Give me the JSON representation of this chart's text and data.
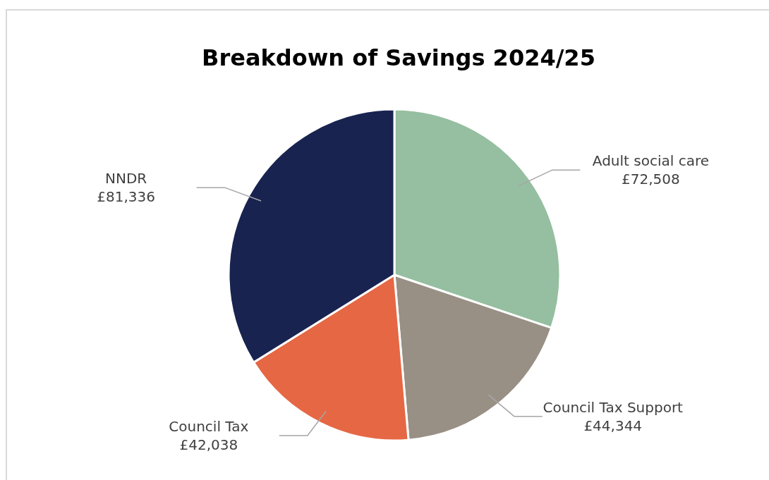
{
  "chart_data": {
    "type": "pie",
    "title": "Breakdown of Savings 2024/25",
    "categories": [
      "Adult social care",
      "Council Tax Support",
      "Council Tax",
      "NNDR"
    ],
    "values": [
      72508,
      44344,
      42038,
      81336
    ],
    "value_labels": [
      "£72,508",
      "£44,344",
      "£42,038",
      "£81,336"
    ],
    "colors": [
      "#95bfa0",
      "#989085",
      "#e66744",
      "#182350"
    ],
    "legend": false
  }
}
